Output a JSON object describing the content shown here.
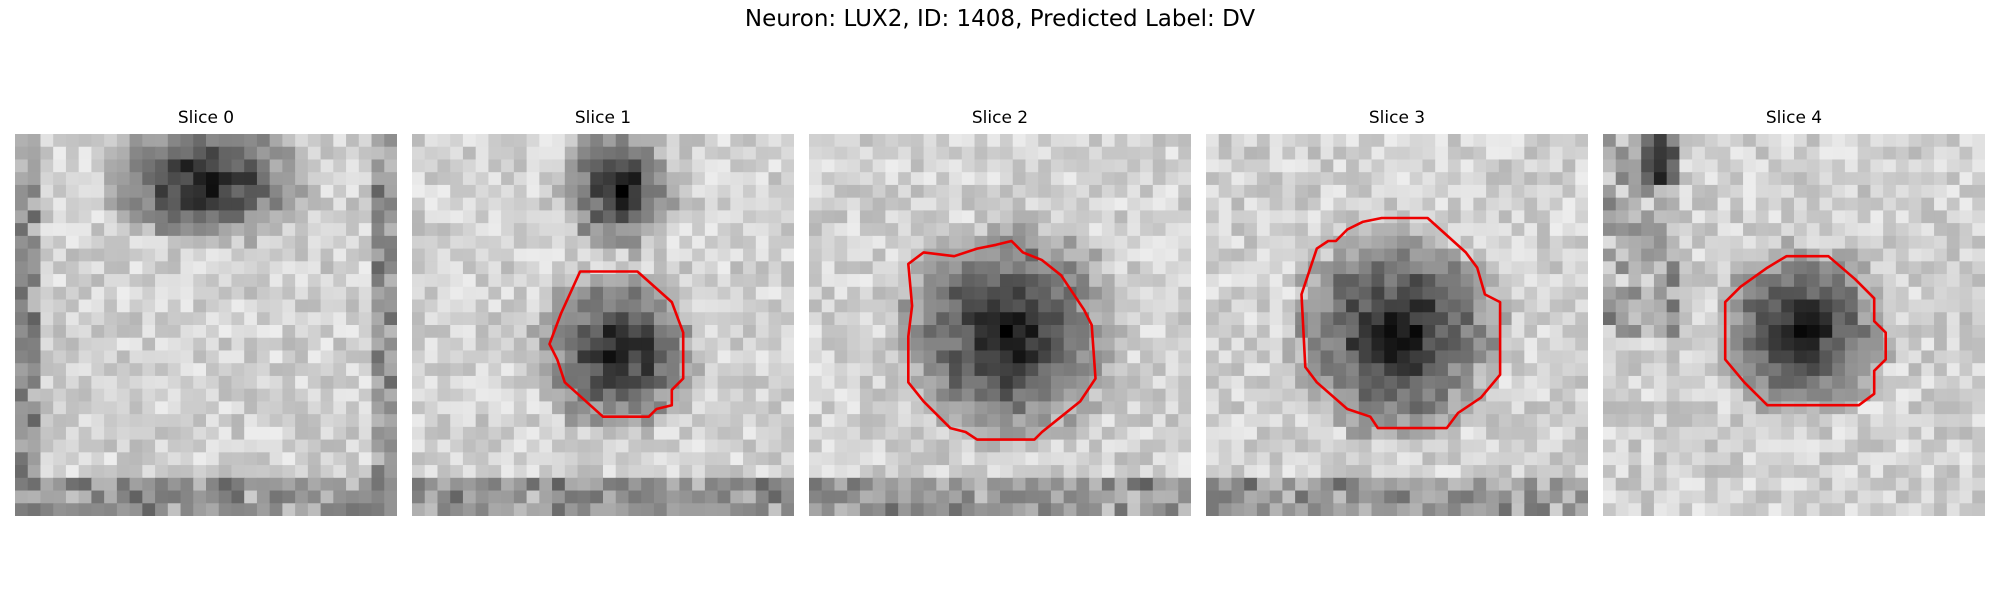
{
  "figure": {
    "title": "Neuron: LUX2, ID: 1408, Predicted Label: DV"
  },
  "contour_color": "#ee0000",
  "slices": [
    {
      "title": "Slice 0"
    },
    {
      "title": "Slice 1"
    },
    {
      "title": "Slice 2"
    },
    {
      "title": "Slice 3"
    },
    {
      "title": "Slice 4"
    }
  ]
}
